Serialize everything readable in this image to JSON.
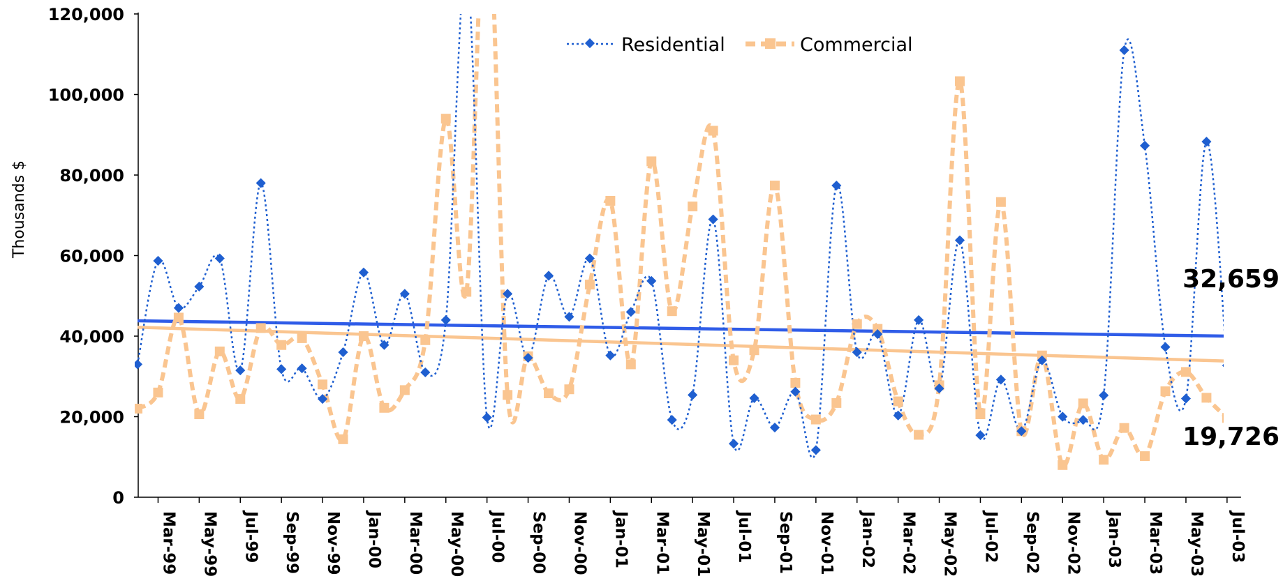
{
  "chart_data": {
    "type": "line",
    "ylabel": "Thousands $",
    "xlabel": "",
    "ylim": [
      0,
      120000
    ],
    "yticks": [
      "0",
      "20,000",
      "40,000",
      "60,000",
      "80,000",
      "100,000",
      "120,000"
    ],
    "ytick_values": [
      0,
      20000,
      40000,
      60000,
      80000,
      100000,
      120000
    ],
    "xtick_labels": [
      "Mar-99",
      "May-99",
      "Jul-99",
      "Sep-99",
      "Nov-99",
      "Jan-00",
      "Mar-00",
      "May-00",
      "Jul-00",
      "Sep-00",
      "Nov-00",
      "Jan-01",
      "Mar-01",
      "May-01",
      "Jul-01",
      "Sep-01",
      "Nov-01",
      "Jan-02",
      "Mar-02",
      "May-02",
      "Jul-02",
      "Sep-02",
      "Nov-02",
      "Jan-03",
      "Mar-03",
      "May-03",
      "Jul-03"
    ],
    "categories": [
      "Feb-99",
      "Mar-99",
      "Apr-99",
      "May-99",
      "Jun-99",
      "Jul-99",
      "Aug-99",
      "Sep-99",
      "Oct-99",
      "Nov-99",
      "Dec-99",
      "Jan-00",
      "Feb-00",
      "Mar-00",
      "Apr-00",
      "May-00",
      "Jun-00",
      "Jul-00",
      "Aug-00",
      "Sep-00",
      "Oct-00",
      "Nov-00",
      "Dec-00",
      "Jan-01",
      "Feb-01",
      "Mar-01",
      "Apr-01",
      "May-01",
      "Jun-01",
      "Jul-01",
      "Aug-01",
      "Sep-01",
      "Oct-01",
      "Nov-01",
      "Dec-01",
      "Jan-02",
      "Feb-02",
      "Mar-02",
      "Apr-02",
      "May-02",
      "Jun-02",
      "Jul-02",
      "Aug-02",
      "Sep-02",
      "Oct-02",
      "Nov-02",
      "Dec-02",
      "Jan-03",
      "Feb-03",
      "Mar-03",
      "Apr-03",
      "May-03",
      "Jun-03",
      "Jul-03"
    ],
    "series": [
      {
        "name": "Residential",
        "color": "#1f5fd0",
        "marker": "diamond",
        "line": "dotted",
        "values": [
          33000,
          58700,
          47000,
          52300,
          59300,
          31500,
          78000,
          31800,
          32000,
          24400,
          36000,
          55800,
          37800,
          50500,
          31000,
          44000,
          132000,
          19800,
          50500,
          34600,
          55000,
          44800,
          59300,
          35200,
          46000,
          53700,
          19200,
          25400,
          69000,
          13300,
          24600,
          17300,
          26200,
          11700,
          77400,
          36000,
          40500,
          20300,
          44000,
          27000,
          63800,
          15400,
          29200,
          16400,
          34000,
          20000,
          19200,
          25300,
          111000,
          87300,
          37300,
          24500,
          88300,
          32700
        ]
      },
      {
        "name": "Commercial",
        "color": "#fac590",
        "marker": "square",
        "line": "dashed",
        "values": [
          22000,
          26000,
          44600,
          20600,
          36200,
          24400,
          42000,
          37800,
          39500,
          28000,
          14400,
          40000,
          22200,
          26600,
          39000,
          94000,
          51000,
          153000,
          25400,
          35000,
          25800,
          26800,
          52800,
          73600,
          33000,
          83400,
          46200,
          72200,
          91000,
          34000,
          36500,
          77400,
          28400,
          19300,
          23400,
          43000,
          41800,
          23800,
          15500,
          27800,
          103300,
          20600,
          73300,
          16400,
          35200,
          8000,
          23300,
          9300,
          17200,
          10200,
          26300,
          31100,
          24700,
          19700
        ]
      }
    ],
    "trendlines": [
      {
        "series": "Residential",
        "color": "#2f5ce8",
        "start": 43800,
        "end": 40000
      },
      {
        "series": "Commercial",
        "color": "#fac590",
        "start": 42200,
        "end": 33800
      }
    ],
    "end_labels": [
      "32,659",
      "19,726"
    ],
    "legend": {
      "position": "top-center",
      "entries": [
        "Residential",
        "Commercial"
      ]
    },
    "grid": false
  }
}
